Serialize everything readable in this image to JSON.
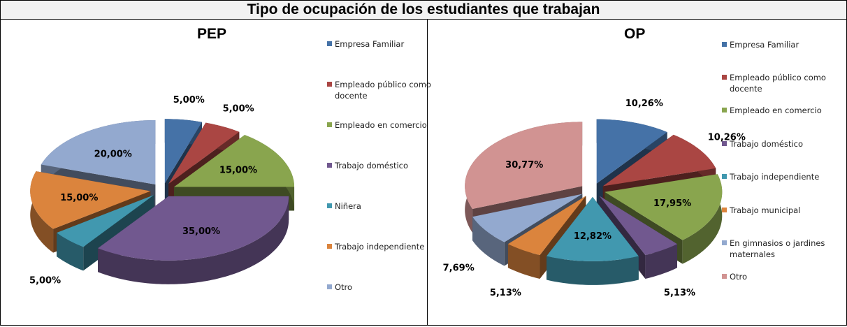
{
  "title": "Tipo de ocupación de los estudiantes que trabajan",
  "chart_data": [
    {
      "type": "pie",
      "style": "3d-exploded",
      "title": "PEP",
      "categories": [
        "Empresa Familiar",
        "Empleado público como docente",
        "Empleado en comercio",
        "Trabajo doméstico",
        "Niñera",
        "Trabajo independiente",
        "Otro"
      ],
      "values": [
        5.0,
        5.0,
        15.0,
        35.0,
        5.0,
        15.0,
        20.0
      ],
      "labels": [
        "5,00%",
        "5,00%",
        "15,00%",
        "35,00%",
        "5,00%",
        "15,00%",
        "20,00%"
      ],
      "colors": [
        "#4572a7",
        "#aa4643",
        "#89a54e",
        "#71588f",
        "#4198af",
        "#db843d",
        "#93a9cf"
      ],
      "legend": "right"
    },
    {
      "type": "pie",
      "style": "3d-exploded",
      "title": "OP",
      "categories": [
        "Empresa Familiar",
        "Empleado público como docente",
        "Empleado en comercio",
        "Trabajo doméstico",
        "Trabajo independiente",
        "Trabajo municipal",
        "En gimnasios o jardines maternales",
        "Otro"
      ],
      "values": [
        10.26,
        10.26,
        17.95,
        5.13,
        12.82,
        5.13,
        7.69,
        30.77
      ],
      "labels": [
        "10,26%",
        "10,26%",
        "17,95%",
        "5,13%",
        "12,82%",
        "5,13%",
        "7,69%",
        "30,77%"
      ],
      "colors": [
        "#4572a7",
        "#aa4643",
        "#89a54e",
        "#71588f",
        "#4198af",
        "#db843d",
        "#93a9cf",
        "#d19392"
      ],
      "legend": "right"
    }
  ]
}
